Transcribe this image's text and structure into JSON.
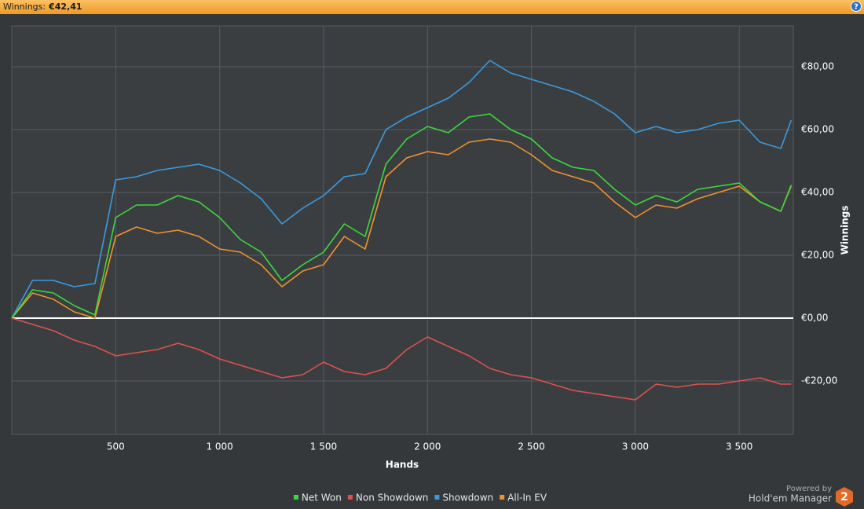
{
  "header": {
    "title_label": "Winnings:",
    "title_value": "€42,41",
    "help": "?"
  },
  "chart_data": {
    "type": "line",
    "x_label": "Hands",
    "y_label": "Winnings",
    "x": [
      0,
      100,
      200,
      300,
      400,
      500,
      600,
      700,
      800,
      900,
      1000,
      1100,
      1200,
      1300,
      1400,
      1500,
      1600,
      1700,
      1800,
      1900,
      2000,
      2100,
      2200,
      2300,
      2400,
      2500,
      2600,
      2700,
      2800,
      2900,
      3000,
      3100,
      3200,
      3300,
      3400,
      3500,
      3600,
      3700,
      3750
    ],
    "series": [
      {
        "name": "Net Won",
        "color": "#3cd83c",
        "values": [
          0,
          9,
          8,
          4,
          1,
          32,
          36,
          36,
          39,
          37,
          32,
          25,
          21,
          12,
          17,
          21,
          30,
          26,
          49,
          57,
          61,
          59,
          64,
          65,
          60,
          57,
          51,
          48,
          47,
          41,
          36,
          39,
          37,
          41,
          42,
          43,
          37,
          34,
          42.41
        ]
      },
      {
        "name": "Non Showdown",
        "color": "#e0504e",
        "values": [
          0,
          -2,
          -4,
          -7,
          -9,
          -12,
          -11,
          -10,
          -8,
          -10,
          -13,
          -15,
          -17,
          -19,
          -18,
          -14,
          -17,
          -18,
          -16,
          -10,
          -6,
          -9,
          -12,
          -16,
          -18,
          -19,
          -21,
          -23,
          -24,
          -25,
          -26,
          -21,
          -22,
          -21,
          -21,
          -20,
          -19,
          -21,
          -21
        ]
      },
      {
        "name": "Showdown",
        "color": "#3a9ae0",
        "values": [
          0,
          12,
          12,
          10,
          11,
          44,
          45,
          47,
          48,
          49,
          47,
          43,
          38,
          30,
          35,
          39,
          45,
          46,
          60,
          64,
          67,
          70,
          75,
          82,
          78,
          76,
          74,
          72,
          69,
          65,
          59,
          61,
          59,
          60,
          62,
          63,
          56,
          54,
          63
        ]
      },
      {
        "name": "All-In EV",
        "color": "#f0922e",
        "values": [
          0,
          8,
          6,
          2,
          0,
          26,
          29,
          27,
          28,
          26,
          22,
          21,
          17,
          10,
          15,
          17,
          26,
          22,
          45,
          51,
          53,
          52,
          56,
          57,
          56,
          52,
          47,
          45,
          43,
          37,
          32,
          36,
          35,
          38,
          40,
          42,
          37,
          34,
          42
        ]
      }
    ],
    "xlim": [
      0,
      3760
    ],
    "xticks": [
      500,
      {
        "value": 1000,
        "label": "1 000"
      },
      {
        "value": 1500,
        "label": "1 500"
      },
      {
        "value": 2000,
        "label": "2 000"
      },
      {
        "value": 2500,
        "label": "2 500"
      },
      {
        "value": 3000,
        "label": "3 000"
      },
      {
        "value": 3500,
        "label": "3 500"
      }
    ],
    "ylim": [
      -37,
      93
    ],
    "yticks": [
      {
        "value": -20,
        "label": "-€20,00"
      },
      {
        "value": 0,
        "label": "€0,00"
      },
      {
        "value": 20,
        "label": "€20,00"
      },
      {
        "value": 40,
        "label": "€40,00"
      },
      {
        "value": 60,
        "label": "€60,00"
      },
      {
        "value": 80,
        "label": "€80,00"
      }
    ],
    "grid": true,
    "legend": "bottom"
  },
  "footer": {
    "powered_by": "Powered by",
    "product": "Hold'em Manager",
    "logo": "2"
  }
}
